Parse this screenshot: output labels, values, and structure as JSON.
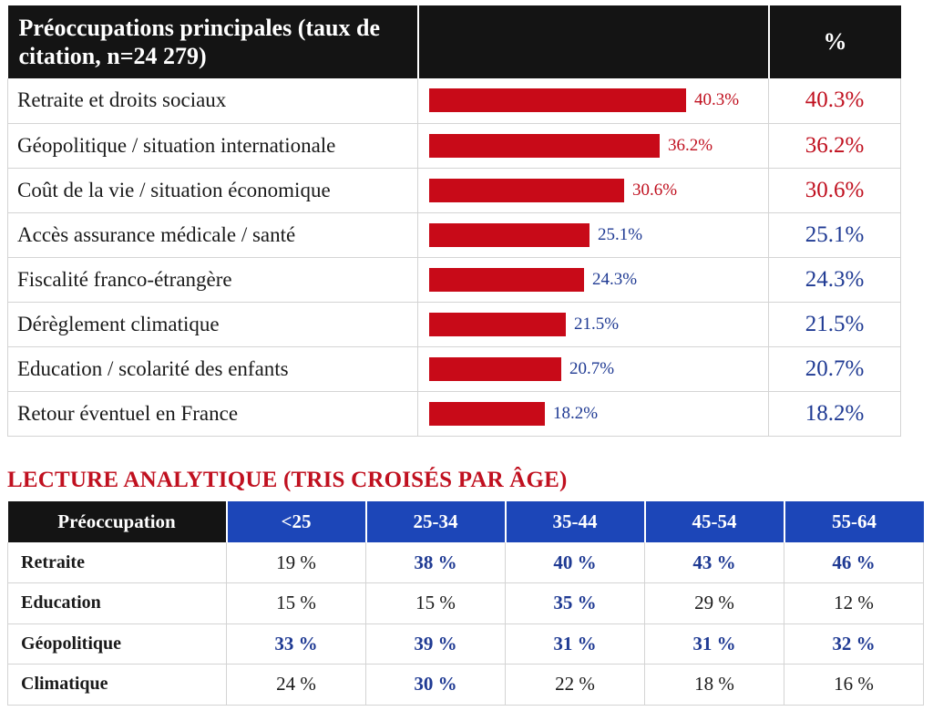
{
  "top_table": {
    "header_label": "Préoccupations principales (taux de citation, n=24 279)",
    "header_pct": "%",
    "colors": {
      "bar": "#c80a18",
      "red_text": "#c0101f",
      "blue_text": "#1f3a93"
    }
  },
  "chart_data": {
    "type": "bar",
    "orientation": "horizontal",
    "categories": [
      "Retraite et droits sociaux",
      "Géopolitique / situation internationale",
      "Coût de la vie / situation économique",
      "Accès assurance médicale / santé",
      "Fiscalité franco-étrangère",
      "Dérèglement climatique",
      "Education / scolarité des enfants",
      "Retour éventuel en France"
    ],
    "values": [
      40.3,
      36.2,
      30.6,
      25.1,
      24.3,
      21.5,
      20.7,
      18.2
    ],
    "value_labels": [
      "40.3%",
      "36.2%",
      "30.6%",
      "25.1%",
      "24.3%",
      "21.5%",
      "20.7%",
      "18.2%"
    ],
    "highlight": [
      "red",
      "red",
      "red",
      "blue",
      "blue",
      "blue",
      "blue",
      "blue"
    ]
  },
  "section_title": "LECTURE ANALYTIQUE (TRIS CROISÉS PAR ÂGE)",
  "age_table": {
    "header_first": "Préoccupation",
    "age_groups": [
      "<25",
      "25-34",
      "35-44",
      "45-54",
      "55-64"
    ],
    "rows": [
      {
        "label": "Retraite",
        "values": [
          "19 %",
          "38 %",
          "40 %",
          "43 %",
          "46 %"
        ],
        "highlight": [
          false,
          true,
          true,
          true,
          true
        ]
      },
      {
        "label": "Education",
        "values": [
          "15 %",
          "15 %",
          "35 %",
          "29 %",
          "12 %"
        ],
        "highlight": [
          false,
          false,
          true,
          false,
          false
        ]
      },
      {
        "label": "Géopolitique",
        "values": [
          "33 %",
          "39 %",
          "31 %",
          "31 %",
          "32 %"
        ],
        "highlight": [
          true,
          true,
          true,
          true,
          true
        ]
      },
      {
        "label": "Climatique",
        "values": [
          "24 %",
          "30 %",
          "22 %",
          "18 %",
          "16 %"
        ],
        "highlight": [
          false,
          true,
          false,
          false,
          false
        ]
      }
    ]
  }
}
